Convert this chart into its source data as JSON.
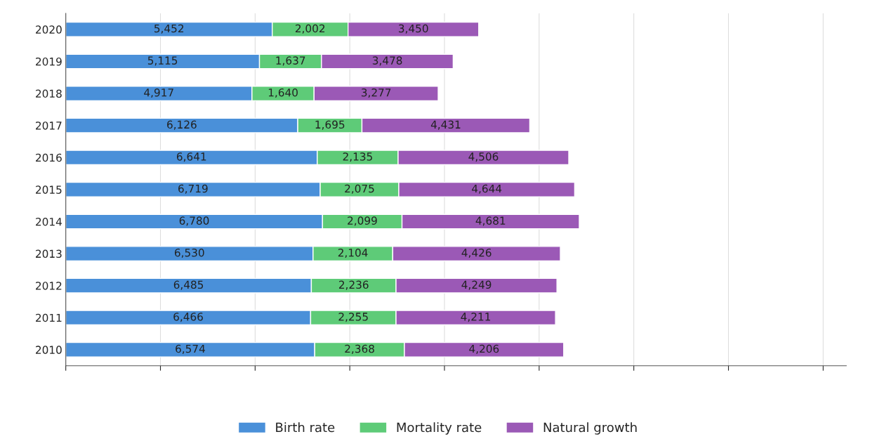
{
  "chart_data": {
    "type": "bar",
    "orientation": "horizontal",
    "stacked": true,
    "categories": [
      "2020",
      "2019",
      "2018",
      "2017",
      "2016",
      "2015",
      "2014",
      "2013",
      "2012",
      "2011",
      "2010"
    ],
    "series": [
      {
        "name": "Birth rate",
        "color": "#4a90d9",
        "values": [
          5452,
          5115,
          4917,
          6126,
          6641,
          6719,
          6780,
          6530,
          6485,
          6466,
          6574
        ],
        "value_labels": [
          "5,452",
          "5,115",
          "4,917",
          "6,126",
          "6,641",
          "6,719",
          "6,780",
          "6,530",
          "6,485",
          "6,466",
          "6,574"
        ]
      },
      {
        "name": "Mortality rate",
        "color": "#5ecb78",
        "values": [
          2002,
          1637,
          1640,
          1695,
          2135,
          2075,
          2099,
          2104,
          2236,
          2255,
          2368
        ],
        "value_labels": [
          "2,002",
          "1,637",
          "1,640",
          "1,695",
          "2,135",
          "2,075",
          "2,099",
          "2,104",
          "2,236",
          "2,255",
          "2,368"
        ]
      },
      {
        "name": "Natural growth",
        "color": "#9b59b6",
        "values": [
          3450,
          3478,
          3277,
          4431,
          4506,
          4644,
          4681,
          4426,
          4249,
          4211,
          4206
        ],
        "value_labels": [
          "3,450",
          "3,478",
          "3,277",
          "4,431",
          "4,506",
          "4,644",
          "4,681",
          "4,426",
          "4,249",
          "4,211",
          "4,206"
        ]
      }
    ],
    "tick_labels": "y",
    "grid": "x",
    "legend": "bottom"
  }
}
